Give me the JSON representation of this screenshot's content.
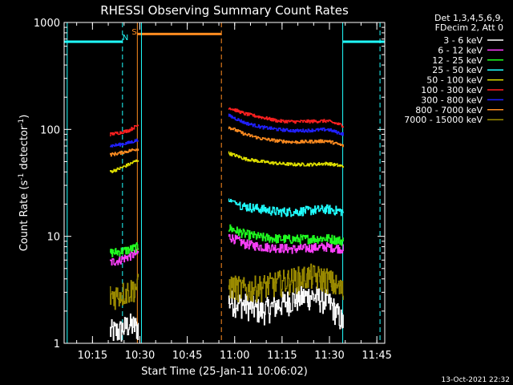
{
  "chart_data": {
    "type": "line",
    "title": "RHESSI Observing Summary Count Rates",
    "xlabel": "Start Time (25-Jan-11 10:06:02)",
    "ylabel_prefix": "Count Rate (s",
    "ylabel_sup": "-1",
    "ylabel_mid": " detector",
    "ylabel_suffix": ")",
    "yscale": "log",
    "ylim": [
      1,
      1000
    ],
    "xlim_min": [
      6.03,
      107.5
    ],
    "y_ticks": [
      {
        "value": 1,
        "label": "1"
      },
      {
        "value": 10,
        "label": "10"
      },
      {
        "value": 100,
        "label": "100"
      },
      {
        "value": 1000,
        "label": "1000"
      }
    ],
    "x_ticks": [
      {
        "value": 15,
        "label": "10:15"
      },
      {
        "value": 30,
        "label": "10:30"
      },
      {
        "value": 45,
        "label": "10:45"
      },
      {
        "value": 60,
        "label": "11:00"
      },
      {
        "value": 75,
        "label": "11:15"
      },
      {
        "value": 90,
        "label": "11:30"
      },
      {
        "value": 105,
        "label": "11:45"
      }
    ],
    "legend": {
      "position": "top-right",
      "header": [
        "Det 1,3,4,5,6,9,",
        "FDecim 2, Att 0"
      ],
      "entries": [
        {
          "label": "3 - 6 keV",
          "color": "#ffffff"
        },
        {
          "label": "6 - 12 keV",
          "color": "#ff40ff"
        },
        {
          "label": "12 - 25 keV",
          "color": "#20ff20"
        },
        {
          "label": "25 - 50 keV",
          "color": "#20ffff"
        },
        {
          "label": "50 - 100 keV",
          "color": "#e0e000"
        },
        {
          "label": "100 - 300 keV",
          "color": "#ff2020"
        },
        {
          "label": "300 - 800 keV",
          "color": "#2020ff"
        },
        {
          "label": "800 - 7000 keV",
          "color": "#ff8c20"
        },
        {
          "label": "7000 - 15000 keV",
          "color": "#9a8a00"
        }
      ]
    },
    "segments_time_min": [
      [
        20.5,
        29.5
      ],
      [
        58,
        94.5
      ]
    ],
    "series": [
      {
        "name": "3 - 6 keV",
        "levels": [
          [
            1.3,
            1.3,
            1.5,
            1.4
          ],
          [
            2.5,
            2.3,
            2.0,
            2.3,
            2.6,
            2.8,
            2.5,
            1.5
          ]
        ]
      },
      {
        "name": "6 - 12 keV",
        "levels": [
          [
            5.7,
            6.0,
            6.5,
            7.0
          ],
          [
            10,
            8.5,
            8.0,
            7.8,
            7.6,
            7.8,
            8.0,
            7.6
          ]
        ]
      },
      {
        "name": "12 - 25 keV",
        "levels": [
          [
            7.0,
            7.2,
            7.5,
            8.0
          ],
          [
            12,
            10.5,
            9.8,
            9.5,
            9.4,
            9.5,
            9.6,
            9.0
          ]
        ]
      },
      {
        "name": "25 - 50 keV",
        "levels": [
          [
            0,
            0,
            0,
            0
          ],
          [
            22,
            19,
            18,
            17,
            17,
            17.5,
            18,
            17
          ]
        ]
      },
      {
        "name": "50 - 100 keV",
        "levels": [
          [
            40,
            43,
            47,
            52
          ],
          [
            60,
            53,
            50,
            48,
            47,
            47,
            48,
            45
          ]
        ]
      },
      {
        "name": "100 - 300 keV",
        "levels": [
          [
            90,
            93,
            98,
            110
          ],
          [
            160,
            140,
            130,
            120,
            118,
            119,
            120,
            108
          ]
        ]
      },
      {
        "name": "300 - 800 keV",
        "levels": [
          [
            70,
            72,
            75,
            80
          ],
          [
            135,
            115,
            105,
            100,
            97,
            98,
            100,
            90
          ]
        ]
      },
      {
        "name": "800 - 7000 keV",
        "levels": [
          [
            58,
            60,
            63,
            66
          ],
          [
            105,
            90,
            82,
            78,
            76,
            77,
            78,
            70
          ]
        ]
      },
      {
        "name": "7000 - 15000 keV",
        "levels": [
          [
            2.8,
            2.9,
            3.1,
            3.5
          ],
          [
            3.5,
            3.2,
            3.4,
            3.7,
            4.0,
            4.3,
            4.0,
            3.0
          ]
        ]
      }
    ],
    "flags": [
      {
        "label": "N",
        "color": "#20ffff",
        "x_min": 24.5
      },
      {
        "label": "S",
        "color": "#ff8c20",
        "x_min": 29.2
      }
    ],
    "states": [
      {
        "kind": "night",
        "color": "#20ffff",
        "intervals": [
          [
            6.03,
            24.5
          ],
          [
            94.2,
            107.5
          ]
        ],
        "level": 660
      },
      {
        "kind": "saa",
        "color": "#ff8c20",
        "intervals": [
          [
            29.2,
            55.8
          ]
        ],
        "level": 780
      }
    ],
    "state_lines": [
      {
        "color": "#20ffff",
        "x_min": 7.0,
        "dash": false
      },
      {
        "color": "#20ffff",
        "x_min": 24.5,
        "dash": true
      },
      {
        "color": "#ff8c20",
        "x_min": 29.2,
        "dash": false
      },
      {
        "color": "#20ffff",
        "x_min": 30.5,
        "dash": false
      },
      {
        "color": "#ff8c20",
        "x_min": 55.8,
        "dash": true
      },
      {
        "color": "#20ffff",
        "x_min": 94.2,
        "dash": false
      },
      {
        "color": "#20ffff",
        "x_min": 106.0,
        "dash": true
      }
    ]
  },
  "footer": {
    "date": "13-Oct-2021 22:32"
  }
}
